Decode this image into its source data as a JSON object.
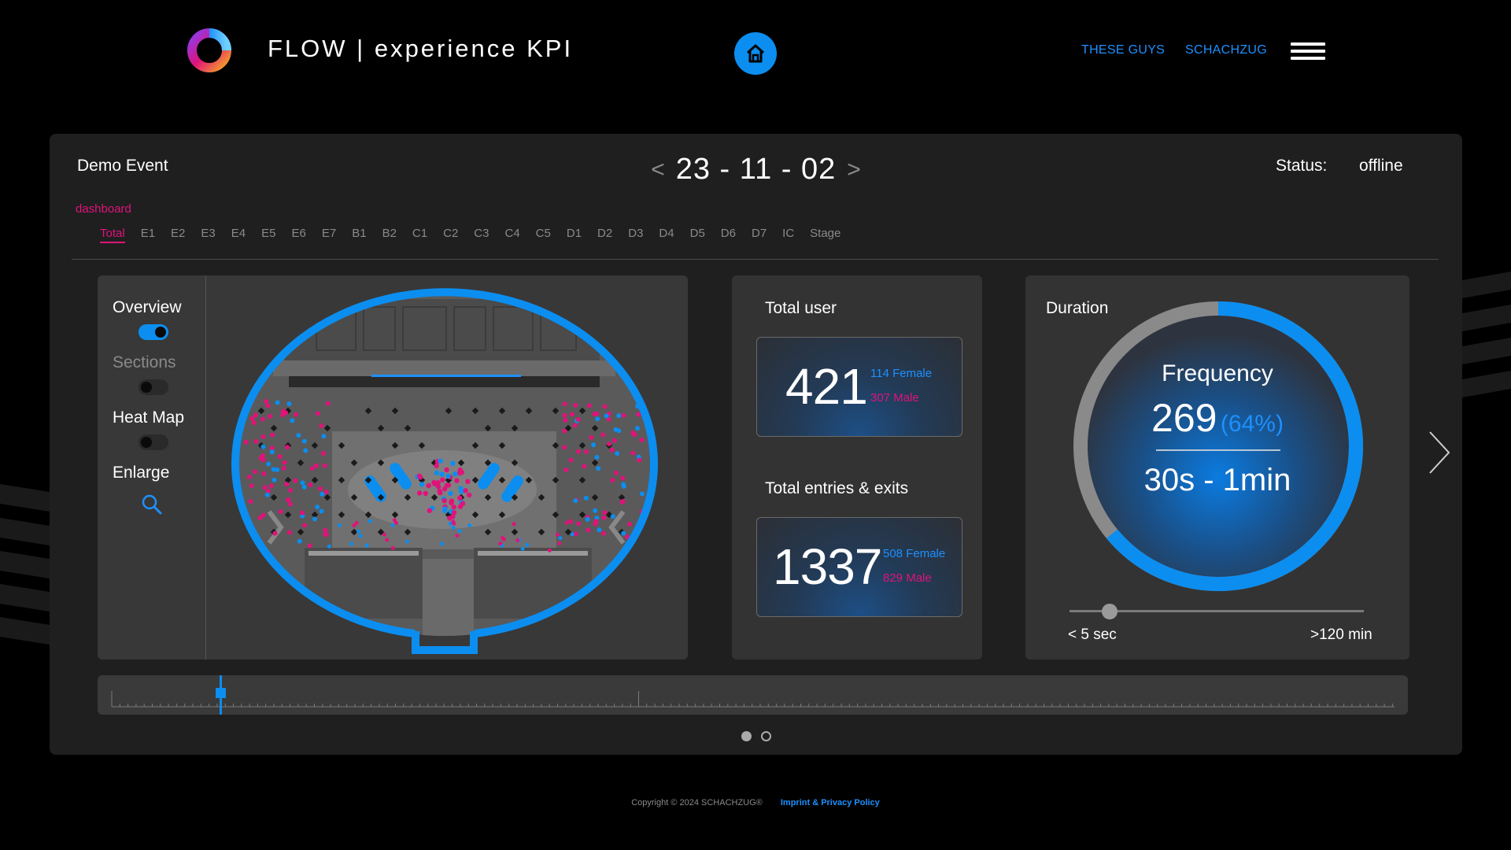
{
  "header": {
    "title": "FLOW | experience KPI",
    "nav": [
      "THESE GUYS",
      "SCHACHZUG"
    ]
  },
  "event": {
    "name": "Demo Event",
    "date": "23 - 11 - 02",
    "prev_arrow": "<",
    "next_arrow": ">",
    "status_label": "Status:",
    "status_value": "offline"
  },
  "dashboard_label": "dashboard",
  "tabs": [
    "Total",
    "E1",
    "E2",
    "E3",
    "E4",
    "E5",
    "E6",
    "E7",
    "B1",
    "B2",
    "C1",
    "C2",
    "C3",
    "C4",
    "C5",
    "D1",
    "D2",
    "D3",
    "D4",
    "D5",
    "D6",
    "D7",
    "IC",
    "Stage"
  ],
  "active_tab": "Total",
  "map_panel": {
    "overview": "Overview",
    "overview_on": true,
    "sections": "Sections",
    "sections_on": false,
    "heatmap": "Heat Map",
    "heatmap_on": false,
    "enlarge": "Enlarge"
  },
  "total_user": {
    "title": "Total user",
    "value": "421",
    "female": "114 Female",
    "male": "307 Male"
  },
  "entries_exits": {
    "title": "Total entries & exits",
    "value": "1337",
    "female": "508 Female",
    "male": "829 Male"
  },
  "duration": {
    "title": "Duration",
    "freq_label": "Frequency",
    "freq_value": "269",
    "freq_percent": "(64%)",
    "freq_fraction": 0.64,
    "range": "30s - 1min",
    "slider_min": "< 5 sec",
    "slider_max": ">120 min"
  },
  "pager": {
    "pages": 2,
    "active": 0
  },
  "footer": {
    "copyright": "Copyright © 2024 SCHACHZUG®",
    "imprint": "Imprint & Privacy Policy"
  },
  "colors": {
    "accent_blue": "#0b8ef0",
    "accent_pink": "#e0137a",
    "panel": "#1f1f1f",
    "card": "#333333"
  }
}
